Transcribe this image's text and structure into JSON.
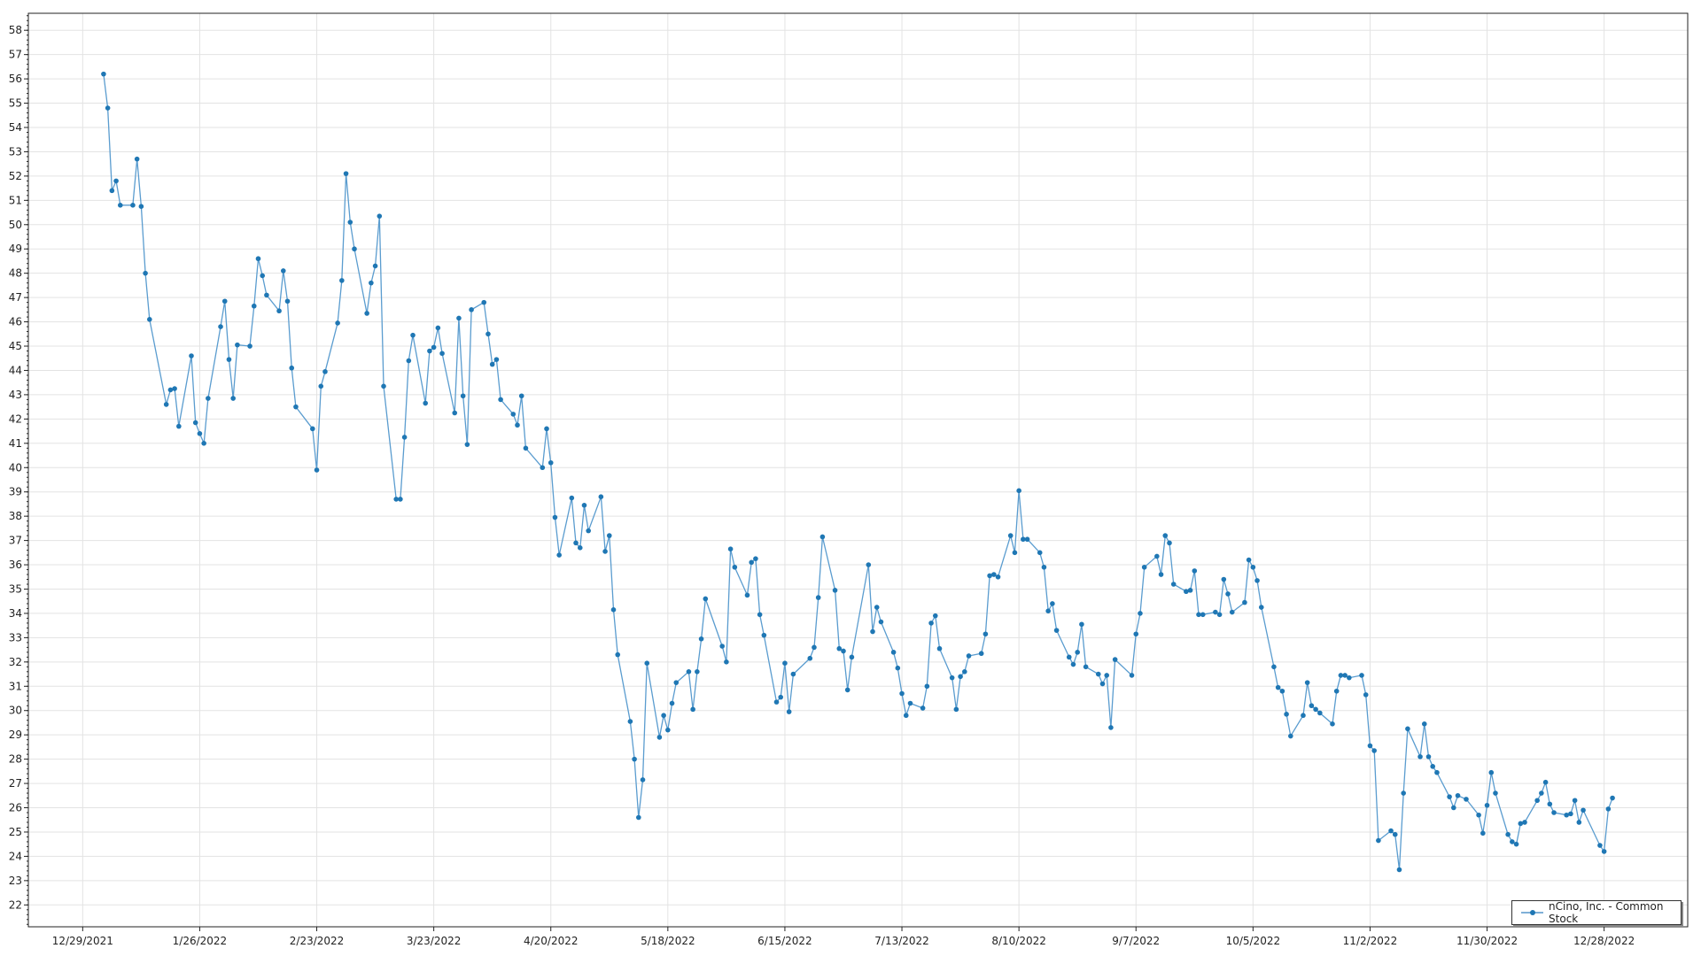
{
  "chart_data": {
    "type": "line",
    "title": "",
    "xlabel": "",
    "ylabel": "",
    "ylim": [
      21.1,
      58.7
    ],
    "xlim": [
      "2021-12-16",
      "2023-01-17"
    ],
    "grid": true,
    "legend_position": "bottom-right",
    "color": "#1f77b4",
    "yticks": [
      "22",
      "23",
      "24",
      "25",
      "26",
      "27",
      "28",
      "29",
      "30",
      "31",
      "32",
      "33",
      "34",
      "35",
      "36",
      "37",
      "38",
      "39",
      "40",
      "41",
      "42",
      "43",
      "44",
      "45",
      "46",
      "47",
      "48",
      "49",
      "50",
      "51",
      "52",
      "53",
      "54",
      "55",
      "56",
      "57",
      "58"
    ],
    "xticks": [
      {
        "date": "2021-12-29",
        "label": "12/29/2021"
      },
      {
        "date": "2022-01-26",
        "label": "1/26/2022"
      },
      {
        "date": "2022-02-23",
        "label": "2/23/2022"
      },
      {
        "date": "2022-03-23",
        "label": "3/23/2022"
      },
      {
        "date": "2022-04-20",
        "label": "4/20/2022"
      },
      {
        "date": "2022-05-18",
        "label": "5/18/2022"
      },
      {
        "date": "2022-06-15",
        "label": "6/15/2022"
      },
      {
        "date": "2022-07-13",
        "label": "7/13/2022"
      },
      {
        "date": "2022-08-10",
        "label": "8/10/2022"
      },
      {
        "date": "2022-09-07",
        "label": "9/7/2022"
      },
      {
        "date": "2022-10-05",
        "label": "10/5/2022"
      },
      {
        "date": "2022-11-02",
        "label": "11/2/2022"
      },
      {
        "date": "2022-11-30",
        "label": "11/30/2022"
      },
      {
        "date": "2022-12-28",
        "label": "12/28/2022"
      }
    ],
    "series": [
      {
        "name": "nCino, Inc. - Common Stock",
        "points": [
          [
            "2022-01-03",
            56.2
          ],
          [
            "2022-01-04",
            54.8
          ],
          [
            "2022-01-05",
            51.4
          ],
          [
            "2022-01-06",
            51.8
          ],
          [
            "2022-01-07",
            50.8
          ],
          [
            "2022-01-10",
            50.8
          ],
          [
            "2022-01-11",
            52.7
          ],
          [
            "2022-01-12",
            50.75
          ],
          [
            "2022-01-13",
            48.0
          ],
          [
            "2022-01-14",
            46.1
          ],
          [
            "2022-01-18",
            42.6
          ],
          [
            "2022-01-19",
            43.2
          ],
          [
            "2022-01-20",
            43.25
          ],
          [
            "2022-01-21",
            41.7
          ],
          [
            "2022-01-24",
            44.6
          ],
          [
            "2022-01-25",
            41.85
          ],
          [
            "2022-01-26",
            41.4
          ],
          [
            "2022-01-27",
            41.0
          ],
          [
            "2022-01-28",
            42.85
          ],
          [
            "2022-01-31",
            45.8
          ],
          [
            "2022-02-01",
            46.85
          ],
          [
            "2022-02-02",
            44.45
          ],
          [
            "2022-02-03",
            42.85
          ],
          [
            "2022-02-04",
            45.05
          ],
          [
            "2022-02-07",
            45.0
          ],
          [
            "2022-02-08",
            46.65
          ],
          [
            "2022-02-09",
            48.6
          ],
          [
            "2022-02-10",
            47.9
          ],
          [
            "2022-02-11",
            47.1
          ],
          [
            "2022-02-14",
            46.45
          ],
          [
            "2022-02-15",
            48.1
          ],
          [
            "2022-02-16",
            46.85
          ],
          [
            "2022-02-17",
            44.1
          ],
          [
            "2022-02-18",
            42.5
          ],
          [
            "2022-02-22",
            41.6
          ],
          [
            "2022-02-23",
            39.9
          ],
          [
            "2022-02-24",
            43.35
          ],
          [
            "2022-02-25",
            43.95
          ],
          [
            "2022-02-28",
            45.95
          ],
          [
            "2022-03-01",
            47.7
          ],
          [
            "2022-03-02",
            52.1
          ],
          [
            "2022-03-03",
            50.1
          ],
          [
            "2022-03-04",
            49.0
          ],
          [
            "2022-03-07",
            46.35
          ],
          [
            "2022-03-08",
            47.6
          ],
          [
            "2022-03-09",
            48.3
          ],
          [
            "2022-03-10",
            50.35
          ],
          [
            "2022-03-11",
            43.35
          ],
          [
            "2022-03-14",
            38.7
          ],
          [
            "2022-03-15",
            38.7
          ],
          [
            "2022-03-16",
            41.25
          ],
          [
            "2022-03-17",
            44.4
          ],
          [
            "2022-03-18",
            45.45
          ],
          [
            "2022-03-21",
            42.65
          ],
          [
            "2022-03-22",
            44.8
          ],
          [
            "2022-03-23",
            44.95
          ],
          [
            "2022-03-24",
            45.75
          ],
          [
            "2022-03-25",
            44.7
          ],
          [
            "2022-03-28",
            42.25
          ],
          [
            "2022-03-29",
            46.15
          ],
          [
            "2022-03-30",
            42.95
          ],
          [
            "2022-03-31",
            40.95
          ],
          [
            "2022-04-01",
            46.5
          ],
          [
            "2022-04-04",
            46.8
          ],
          [
            "2022-04-05",
            45.5
          ],
          [
            "2022-04-06",
            44.25
          ],
          [
            "2022-04-07",
            44.45
          ],
          [
            "2022-04-08",
            42.8
          ],
          [
            "2022-04-11",
            42.2
          ],
          [
            "2022-04-12",
            41.75
          ],
          [
            "2022-04-13",
            42.95
          ],
          [
            "2022-04-14",
            40.8
          ],
          [
            "2022-04-18",
            40.0
          ],
          [
            "2022-04-19",
            41.6
          ],
          [
            "2022-04-20",
            40.2
          ],
          [
            "2022-04-21",
            37.95
          ],
          [
            "2022-04-22",
            36.4
          ],
          [
            "2022-04-25",
            38.75
          ],
          [
            "2022-04-26",
            36.9
          ],
          [
            "2022-04-27",
            36.7
          ],
          [
            "2022-04-28",
            38.45
          ],
          [
            "2022-04-29",
            37.4
          ],
          [
            "2022-05-02",
            38.8
          ],
          [
            "2022-05-03",
            36.55
          ],
          [
            "2022-05-04",
            37.2
          ],
          [
            "2022-05-05",
            34.15
          ],
          [
            "2022-05-06",
            32.3
          ],
          [
            "2022-05-09",
            29.55
          ],
          [
            "2022-05-10",
            28.0
          ],
          [
            "2022-05-11",
            25.6
          ],
          [
            "2022-05-12",
            27.15
          ],
          [
            "2022-05-13",
            31.95
          ],
          [
            "2022-05-16",
            28.9
          ],
          [
            "2022-05-17",
            29.8
          ],
          [
            "2022-05-18",
            29.2
          ],
          [
            "2022-05-19",
            30.3
          ],
          [
            "2022-05-20",
            31.15
          ],
          [
            "2022-05-23",
            31.6
          ],
          [
            "2022-05-24",
            30.05
          ],
          [
            "2022-05-25",
            31.6
          ],
          [
            "2022-05-26",
            32.95
          ],
          [
            "2022-05-27",
            34.6
          ],
          [
            "2022-05-31",
            32.65
          ],
          [
            "2022-06-01",
            32.0
          ],
          [
            "2022-06-02",
            36.65
          ],
          [
            "2022-06-03",
            35.9
          ],
          [
            "2022-06-06",
            34.75
          ],
          [
            "2022-06-07",
            36.1
          ],
          [
            "2022-06-08",
            36.25
          ],
          [
            "2022-06-09",
            33.95
          ],
          [
            "2022-06-10",
            33.1
          ],
          [
            "2022-06-13",
            30.35
          ],
          [
            "2022-06-14",
            30.55
          ],
          [
            "2022-06-15",
            31.95
          ],
          [
            "2022-06-16",
            29.95
          ],
          [
            "2022-06-17",
            31.5
          ],
          [
            "2022-06-21",
            32.15
          ],
          [
            "2022-06-22",
            32.6
          ],
          [
            "2022-06-23",
            34.65
          ],
          [
            "2022-06-24",
            37.15
          ],
          [
            "2022-06-27",
            34.95
          ],
          [
            "2022-06-28",
            32.55
          ],
          [
            "2022-06-29",
            32.45
          ],
          [
            "2022-06-30",
            30.85
          ],
          [
            "2022-07-01",
            32.2
          ],
          [
            "2022-07-05",
            36.0
          ],
          [
            "2022-07-06",
            33.25
          ],
          [
            "2022-07-07",
            34.25
          ],
          [
            "2022-07-08",
            33.65
          ],
          [
            "2022-07-11",
            32.4
          ],
          [
            "2022-07-12",
            31.75
          ],
          [
            "2022-07-13",
            30.7
          ],
          [
            "2022-07-14",
            29.8
          ],
          [
            "2022-07-15",
            30.3
          ],
          [
            "2022-07-18",
            30.1
          ],
          [
            "2022-07-19",
            31.0
          ],
          [
            "2022-07-20",
            33.6
          ],
          [
            "2022-07-21",
            33.9
          ],
          [
            "2022-07-22",
            32.55
          ],
          [
            "2022-07-25",
            31.35
          ],
          [
            "2022-07-26",
            30.05
          ],
          [
            "2022-07-27",
            31.4
          ],
          [
            "2022-07-28",
            31.6
          ],
          [
            "2022-07-29",
            32.25
          ],
          [
            "2022-08-01",
            32.35
          ],
          [
            "2022-08-02",
            33.15
          ],
          [
            "2022-08-03",
            35.55
          ],
          [
            "2022-08-04",
            35.6
          ],
          [
            "2022-08-05",
            35.5
          ],
          [
            "2022-08-08",
            37.2
          ],
          [
            "2022-08-09",
            36.5
          ],
          [
            "2022-08-10",
            39.05
          ],
          [
            "2022-08-11",
            37.05
          ],
          [
            "2022-08-12",
            37.05
          ],
          [
            "2022-08-15",
            36.5
          ],
          [
            "2022-08-16",
            35.9
          ],
          [
            "2022-08-17",
            34.1
          ],
          [
            "2022-08-18",
            34.4
          ],
          [
            "2022-08-19",
            33.3
          ],
          [
            "2022-08-22",
            32.2
          ],
          [
            "2022-08-23",
            31.9
          ],
          [
            "2022-08-24",
            32.4
          ],
          [
            "2022-08-25",
            33.55
          ],
          [
            "2022-08-26",
            31.8
          ],
          [
            "2022-08-29",
            31.5
          ],
          [
            "2022-08-30",
            31.1
          ],
          [
            "2022-08-31",
            31.45
          ],
          [
            "2022-09-01",
            29.3
          ],
          [
            "2022-09-02",
            32.1
          ],
          [
            "2022-09-06",
            31.45
          ],
          [
            "2022-09-07",
            33.15
          ],
          [
            "2022-09-08",
            34.0
          ],
          [
            "2022-09-09",
            35.9
          ],
          [
            "2022-09-12",
            36.35
          ],
          [
            "2022-09-13",
            35.6
          ],
          [
            "2022-09-14",
            37.2
          ],
          [
            "2022-09-15",
            36.9
          ],
          [
            "2022-09-16",
            35.2
          ],
          [
            "2022-09-19",
            34.9
          ],
          [
            "2022-09-20",
            34.95
          ],
          [
            "2022-09-21",
            35.75
          ],
          [
            "2022-09-22",
            33.95
          ],
          [
            "2022-09-23",
            33.95
          ],
          [
            "2022-09-26",
            34.05
          ],
          [
            "2022-09-27",
            33.95
          ],
          [
            "2022-09-28",
            35.4
          ],
          [
            "2022-09-29",
            34.8
          ],
          [
            "2022-09-30",
            34.05
          ],
          [
            "2022-10-03",
            34.45
          ],
          [
            "2022-10-04",
            36.2
          ],
          [
            "2022-10-05",
            35.9
          ],
          [
            "2022-10-06",
            35.35
          ],
          [
            "2022-10-07",
            34.25
          ],
          [
            "2022-10-10",
            31.8
          ],
          [
            "2022-10-11",
            30.95
          ],
          [
            "2022-10-12",
            30.8
          ],
          [
            "2022-10-13",
            29.85
          ],
          [
            "2022-10-14",
            28.95
          ],
          [
            "2022-10-17",
            29.8
          ],
          [
            "2022-10-18",
            31.15
          ],
          [
            "2022-10-19",
            30.2
          ],
          [
            "2022-10-20",
            30.05
          ],
          [
            "2022-10-21",
            29.9
          ],
          [
            "2022-10-24",
            29.45
          ],
          [
            "2022-10-25",
            30.8
          ],
          [
            "2022-10-26",
            31.45
          ],
          [
            "2022-10-27",
            31.45
          ],
          [
            "2022-10-28",
            31.35
          ],
          [
            "2022-10-31",
            31.45
          ],
          [
            "2022-11-01",
            30.65
          ],
          [
            "2022-11-02",
            28.55
          ],
          [
            "2022-11-03",
            28.35
          ],
          [
            "2022-11-04",
            24.65
          ],
          [
            "2022-11-07",
            25.05
          ],
          [
            "2022-11-08",
            24.9
          ],
          [
            "2022-11-09",
            23.45
          ],
          [
            "2022-11-10",
            26.6
          ],
          [
            "2022-11-11",
            29.25
          ],
          [
            "2022-11-14",
            28.1
          ],
          [
            "2022-11-15",
            29.45
          ],
          [
            "2022-11-16",
            28.1
          ],
          [
            "2022-11-17",
            27.7
          ],
          [
            "2022-11-18",
            27.45
          ],
          [
            "2022-11-21",
            26.45
          ],
          [
            "2022-11-22",
            26.0
          ],
          [
            "2022-11-23",
            26.5
          ],
          [
            "2022-11-25",
            26.35
          ],
          [
            "2022-11-28",
            25.7
          ],
          [
            "2022-11-29",
            24.95
          ],
          [
            "2022-11-30",
            26.1
          ],
          [
            "2022-12-01",
            27.45
          ],
          [
            "2022-12-02",
            26.6
          ],
          [
            "2022-12-05",
            24.9
          ],
          [
            "2022-12-06",
            24.6
          ],
          [
            "2022-12-07",
            24.5
          ],
          [
            "2022-12-08",
            25.35
          ],
          [
            "2022-12-09",
            25.4
          ],
          [
            "2022-12-12",
            26.3
          ],
          [
            "2022-12-13",
            26.6
          ],
          [
            "2022-12-14",
            27.05
          ],
          [
            "2022-12-15",
            26.15
          ],
          [
            "2022-12-16",
            25.8
          ],
          [
            "2022-12-19",
            25.7
          ],
          [
            "2022-12-20",
            25.75
          ],
          [
            "2022-12-21",
            26.3
          ],
          [
            "2022-12-22",
            25.4
          ],
          [
            "2022-12-23",
            25.9
          ],
          [
            "2022-12-27",
            24.45
          ],
          [
            "2022-12-28",
            24.2
          ],
          [
            "2022-12-29",
            25.95
          ],
          [
            "2022-12-30",
            26.4
          ]
        ]
      }
    ]
  }
}
